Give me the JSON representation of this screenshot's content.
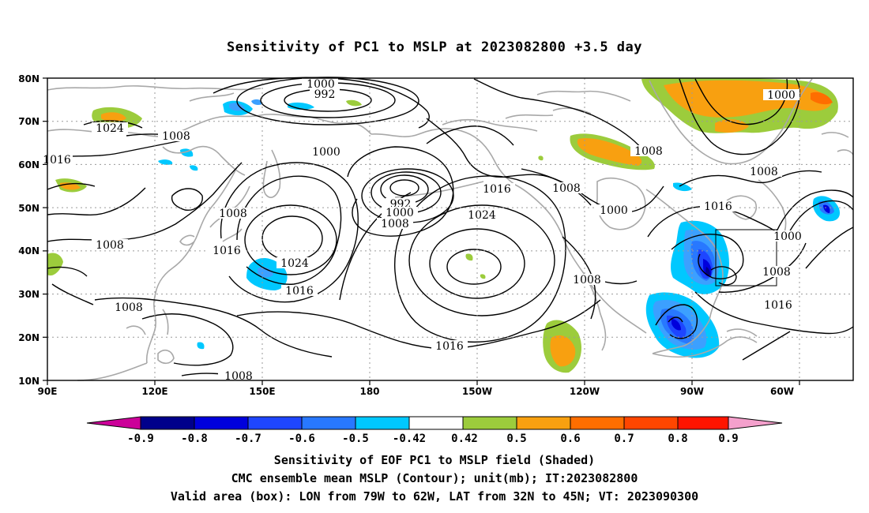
{
  "title": "Sensitivity of PC1 to MSLP at 2023082800 +3.5 day",
  "map": {
    "lat_labels": [
      "80N",
      "70N",
      "60N",
      "50N",
      "40N",
      "30N",
      "20N",
      "10N"
    ],
    "lon_labels": [
      "90E",
      "120E",
      "150E",
      "180",
      "150W",
      "120W",
      "90W",
      "60W"
    ],
    "colors": {
      "coast": "#a8a8a8",
      "contour": "#000000",
      "neg_09": "#00008b",
      "neg_08": "#0000dc",
      "neg_07": "#1e46ff",
      "neg_06": "#2878ff",
      "neg_05": "#3ca0ff",
      "neg_042": "#00c8ff",
      "pos_042": "#9ccc3c",
      "pos_05": "#f8a010",
      "pos_06": "#ff6e00",
      "pos_07": "#ff4600",
      "pos_08": "#ff1400",
      "tri_neg": "#cc0099",
      "tri_pos": "#f4a0cc"
    },
    "contour_labels": [
      {
        "text": "1000",
        "id": "c1000-a"
      },
      {
        "text": "992",
        "id": "c992-a"
      },
      {
        "text": "1024",
        "id": "c1024-a"
      },
      {
        "text": "1008",
        "id": "c1008-a"
      },
      {
        "text": "1016",
        "id": "c1016-a"
      },
      {
        "text": "1000",
        "id": "c1000-b"
      },
      {
        "text": "1008",
        "id": "c1008-b"
      },
      {
        "text": "1016",
        "id": "c1016-b"
      },
      {
        "text": "1024",
        "id": "c1024-b"
      },
      {
        "text": "1016",
        "id": "c1016-c"
      },
      {
        "text": "1008",
        "id": "c1008-c"
      },
      {
        "text": "1008",
        "id": "c1008-d"
      },
      {
        "text": "992",
        "id": "c992-b"
      },
      {
        "text": "1000",
        "id": "c1000-c"
      },
      {
        "text": "1008",
        "id": "c1008-e"
      },
      {
        "text": "1016",
        "id": "c1016-d"
      },
      {
        "text": "1024",
        "id": "c1024-c"
      },
      {
        "text": "1016",
        "id": "c1016-e"
      },
      {
        "text": "1008",
        "id": "c1008-f"
      },
      {
        "text": "1008",
        "id": "c1008-g"
      },
      {
        "text": "1000",
        "id": "c1000-d"
      },
      {
        "text": "1008",
        "id": "c1008-h"
      },
      {
        "text": "1008",
        "id": "c1008-i"
      },
      {
        "text": "1016",
        "id": "c1016-f"
      },
      {
        "text": "1008",
        "id": "c1008-j"
      },
      {
        "text": "1000",
        "id": "c1000-e"
      },
      {
        "text": "1000",
        "id": "c1000-f"
      },
      {
        "text": "1008",
        "id": "c1008-k"
      },
      {
        "text": "1016",
        "id": "c1016-g"
      },
      {
        "text": "1016",
        "id": "c1016-h"
      },
      {
        "text": "1008",
        "id": "c1008-l"
      }
    ]
  },
  "colorbar": {
    "labels": [
      "-0.9",
      "-0.8",
      "-0.7",
      "-0.6",
      "-0.5",
      "-0.42",
      "0.42",
      "0.5",
      "0.6",
      "0.7",
      "0.8",
      "0.9"
    ]
  },
  "captions": {
    "line1": "Sensitivity of EOF PC1 to MSLP field (Shaded)",
    "line2": "CMC ensemble mean MSLP (Contour); unit(mb); IT:2023082800",
    "line3": "Valid area (box): LON from 79W to 62W, LAT from 32N to 45N; VT: 2023090300"
  }
}
